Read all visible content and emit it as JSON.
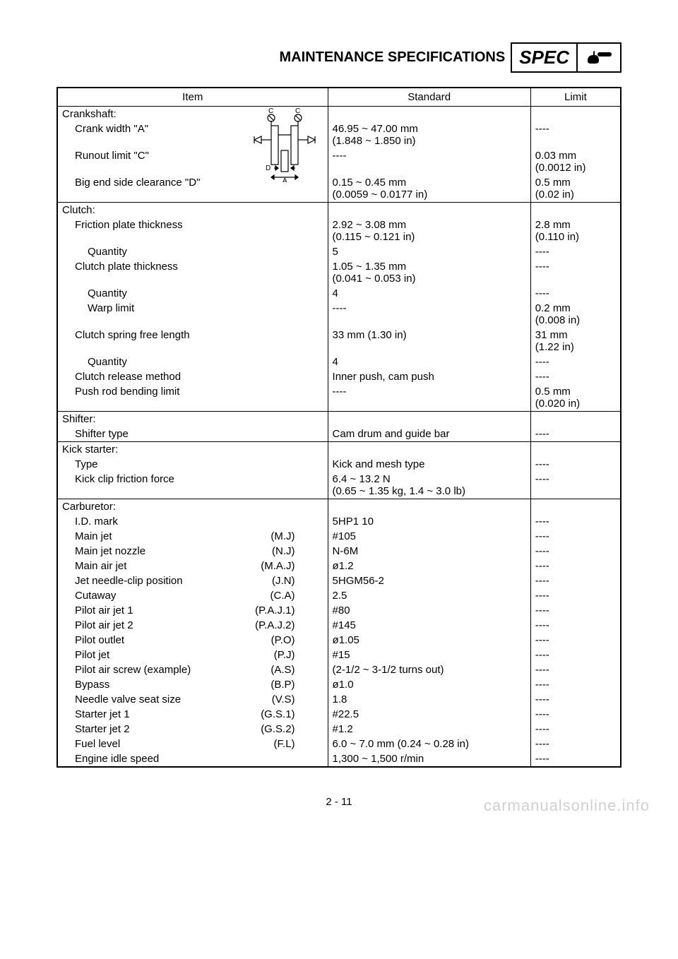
{
  "header": {
    "title": "MAINTENANCE SPECIFICATIONS",
    "spec_label": "SPEC"
  },
  "columns": {
    "item": "Item",
    "standard": "Standard",
    "limit": "Limit"
  },
  "sections": [
    {
      "title": "Crankshaft:",
      "has_diagram": true,
      "rows": [
        {
          "label": "Crank width \"A\"",
          "indent": 1,
          "std": "46.95 ~ 47.00 mm\n(1.848 ~ 1.850 in)",
          "lim": "----"
        },
        {
          "label": "Runout limit \"C\"",
          "indent": 1,
          "std": "----",
          "lim": "0.03 mm\n(0.0012 in)"
        },
        {
          "label": "Big end side clearance \"D\"",
          "indent": 1,
          "std": "0.15 ~ 0.45 mm\n(0.0059 ~ 0.0177 in)",
          "lim": "0.5 mm\n(0.02 in)"
        }
      ]
    },
    {
      "title": "Clutch:",
      "rows": [
        {
          "label": "Friction plate thickness",
          "indent": 1,
          "std": "2.92 ~ 3.08 mm\n(0.115 ~ 0.121 in)",
          "lim": "2.8 mm\n(0.110 in)"
        },
        {
          "label": "Quantity",
          "indent": 2,
          "std": "5",
          "lim": "----"
        },
        {
          "label": "Clutch plate thickness",
          "indent": 1,
          "std": "1.05 ~ 1.35 mm\n(0.041 ~ 0.053 in)",
          "lim": "----"
        },
        {
          "label": "Quantity",
          "indent": 2,
          "std": "4",
          "lim": "----"
        },
        {
          "label": "Warp limit",
          "indent": 2,
          "std": "----",
          "lim": "0.2 mm\n(0.008 in)"
        },
        {
          "label": "Clutch spring free length",
          "indent": 1,
          "std": "33 mm (1.30 in)",
          "lim": "31 mm\n(1.22 in)"
        },
        {
          "label": "Quantity",
          "indent": 2,
          "std": "4",
          "lim": "----"
        },
        {
          "label": "Clutch release method",
          "indent": 1,
          "std": "Inner push, cam push",
          "lim": "----"
        },
        {
          "label": "Push rod bending limit",
          "indent": 1,
          "std": "----",
          "lim": "0.5 mm\n(0.020 in)"
        }
      ]
    },
    {
      "title": "Shifter:",
      "rows": [
        {
          "label": "Shifter type",
          "indent": 1,
          "std": "Cam drum and guide bar",
          "lim": "----"
        }
      ]
    },
    {
      "title": "Kick starter:",
      "rows": [
        {
          "label": "Type",
          "indent": 1,
          "std": "Kick and mesh type",
          "lim": "----"
        },
        {
          "label": "Kick clip friction force",
          "indent": 1,
          "std": "6.4 ~ 13.2 N\n(0.65 ~ 1.35 kg, 1.4 ~ 3.0 lb)",
          "lim": "----"
        }
      ]
    },
    {
      "title": "Carburetor:",
      "rows": [
        {
          "label": "I.D. mark",
          "indent": 1,
          "std": "5HP1 10",
          "lim": "----"
        },
        {
          "label": "Main jet",
          "indent": 1,
          "abbr": "(M.J)",
          "std": "#105",
          "lim": "----"
        },
        {
          "label": "Main jet nozzle",
          "indent": 1,
          "abbr": "(N.J)",
          "std": "N-6M",
          "lim": "----"
        },
        {
          "label": "Main air jet",
          "indent": 1,
          "abbr": "(M.A.J)",
          "std": "ø1.2",
          "lim": "----"
        },
        {
          "label": "Jet needle-clip position",
          "indent": 1,
          "abbr": "(J.N)",
          "std": "5HGM56-2",
          "lim": "----"
        },
        {
          "label": "Cutaway",
          "indent": 1,
          "abbr": "(C.A)",
          "std": "2.5",
          "lim": "----"
        },
        {
          "label": "Pilot air jet 1",
          "indent": 1,
          "abbr": "(P.A.J.1)",
          "std": "#80",
          "lim": "----"
        },
        {
          "label": "Pilot air jet 2",
          "indent": 1,
          "abbr": "(P.A.J.2)",
          "std": "#145",
          "lim": "----"
        },
        {
          "label": "Pilot outlet",
          "indent": 1,
          "abbr": "(P.O)",
          "std": "ø1.05",
          "lim": "----"
        },
        {
          "label": "Pilot jet",
          "indent": 1,
          "abbr": "(P.J)",
          "std": "#15",
          "lim": "----"
        },
        {
          "label": "Pilot air screw (example)",
          "indent": 1,
          "abbr": "(A.S)",
          "std": "(2-1/2 ~ 3-1/2 turns out)",
          "lim": "----"
        },
        {
          "label": "Bypass",
          "indent": 1,
          "abbr": "(B.P)",
          "std": "ø1.0",
          "lim": "----"
        },
        {
          "label": "Needle valve seat size",
          "indent": 1,
          "abbr": "(V.S)",
          "std": "1.8",
          "lim": "----"
        },
        {
          "label": "Starter jet 1",
          "indent": 1,
          "abbr": "(G.S.1)",
          "std": "#22.5",
          "lim": "----"
        },
        {
          "label": "Starter jet 2",
          "indent": 1,
          "abbr": "(G.S.2)",
          "std": "#1.2",
          "lim": "----"
        },
        {
          "label": "Fuel level",
          "indent": 1,
          "abbr": "(F.L)",
          "std": "6.0 ~ 7.0 mm (0.24 ~ 0.28 in)",
          "lim": "----"
        },
        {
          "label": "Engine idle speed",
          "indent": 1,
          "std": "1,300 ~ 1,500 r/min",
          "lim": "----"
        }
      ]
    }
  ],
  "page_number": "2 - 11",
  "watermark": "carmanualsonline.info"
}
